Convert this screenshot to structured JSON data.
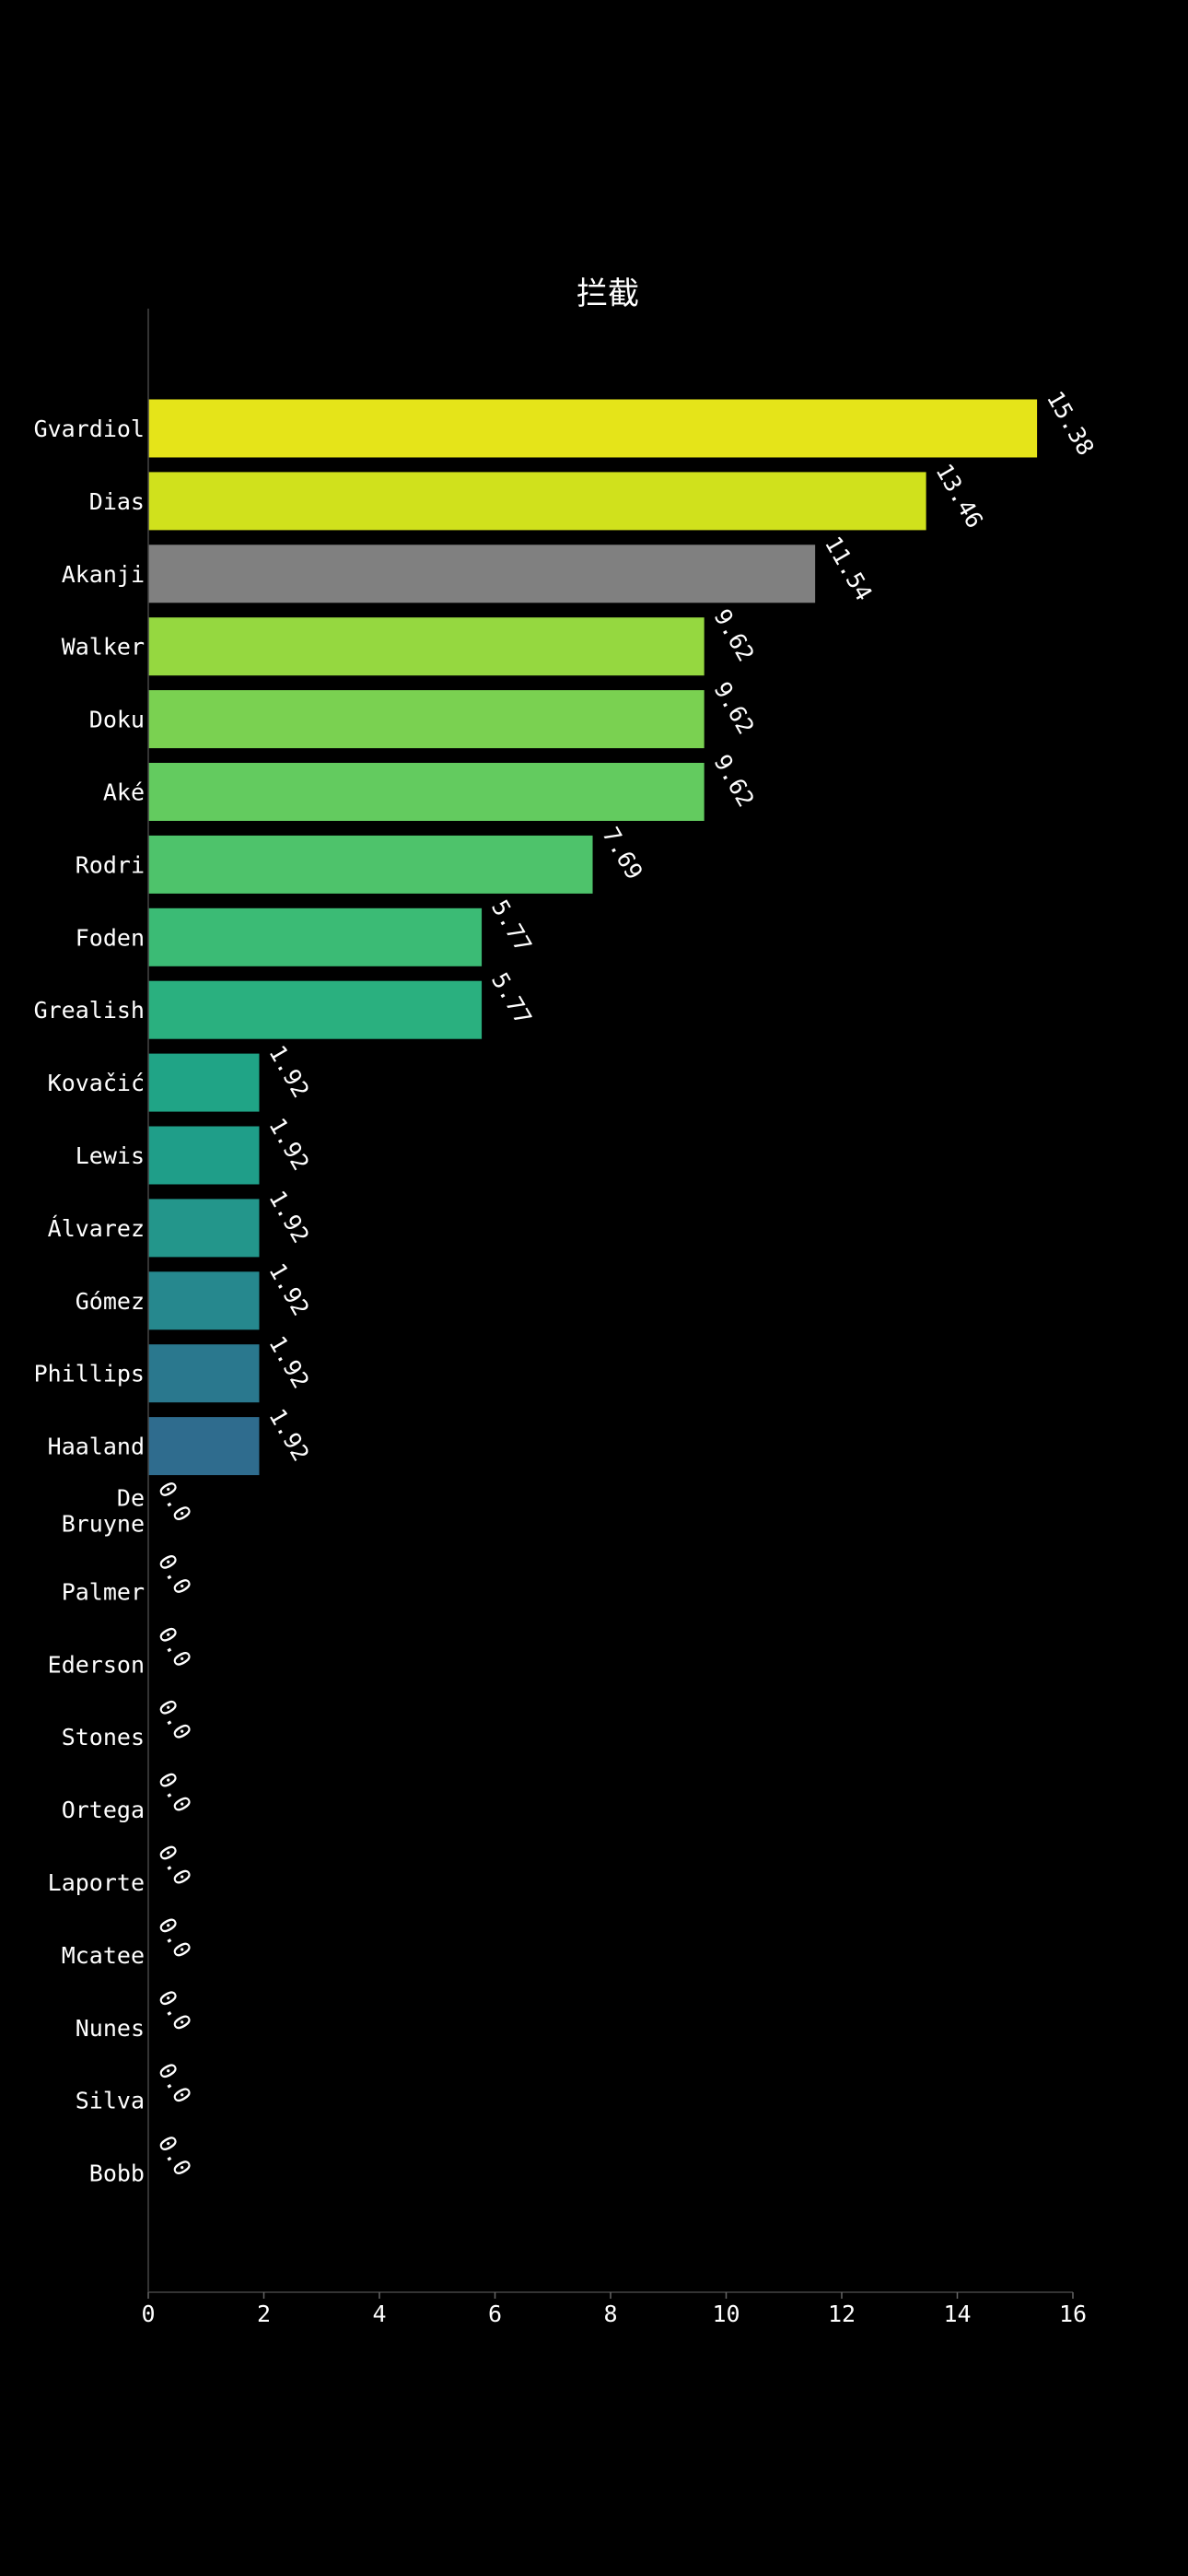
{
  "chart_data": {
    "type": "bar",
    "orientation": "horizontal",
    "title": "拦截",
    "xlabel": "",
    "ylabel": "",
    "xlim": [
      0,
      16
    ],
    "xticks": [
      0,
      2,
      4,
      6,
      8,
      10,
      12,
      14,
      16
    ],
    "grid": false,
    "background": "#000000",
    "categories": [
      "Gvardiol",
      "Dias",
      "Akanji",
      "Walker",
      "Doku",
      "Aké",
      "Rodri",
      "Foden",
      "Grealish",
      "Kovačić",
      "Lewis",
      "Álvarez",
      "Gómez",
      "Phillips",
      "Haaland",
      "De Bruyne",
      "Palmer",
      "Ederson",
      "Stones",
      "Ortega",
      "Laporte",
      "Mcatee",
      "Nunes",
      "Silva",
      "Bobb"
    ],
    "values": [
      15.38,
      13.46,
      11.54,
      9.62,
      9.62,
      9.62,
      7.69,
      5.77,
      5.77,
      1.92,
      1.92,
      1.92,
      1.92,
      1.92,
      1.92,
      0.0,
      0.0,
      0.0,
      0.0,
      0.0,
      0.0,
      0.0,
      0.0,
      0.0,
      0.0
    ],
    "value_labels": [
      "15.38",
      "13.46",
      "11.54",
      "9.62",
      "9.62",
      "9.62",
      "7.69",
      "5.77",
      "5.77",
      "1.92",
      "1.92",
      "1.92",
      "1.92",
      "1.92",
      "1.92",
      "0.0",
      "0.0",
      "0.0",
      "0.0",
      "0.0",
      "0.0",
      "0.0",
      "0.0",
      "0.0",
      "0.0"
    ],
    "colors": [
      "#e5e419",
      "#d0e11c",
      "#808080",
      "#95d840",
      "#7ad151",
      "#63cb5f",
      "#4ec36b",
      "#3bbb75",
      "#2ab07f",
      "#20a486",
      "#1f9e89",
      "#23968b",
      "#26888e",
      "#2a788e",
      "#2f6c8e",
      "#31668e",
      "#31668e",
      "#31668e",
      "#31668e",
      "#31668e",
      "#31668e",
      "#31668e",
      "#31668e",
      "#31668e",
      "#31668e"
    ]
  }
}
